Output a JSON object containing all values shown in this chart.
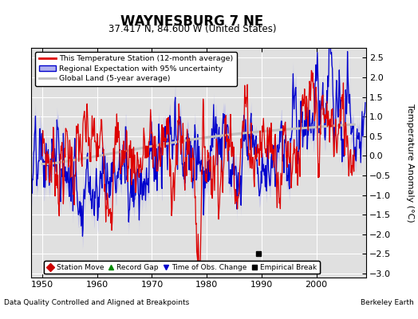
{
  "title": "WAYNESBURG 7 NE",
  "subtitle": "37.417 N, 84.600 W (United States)",
  "ylabel": "Temperature Anomaly (°C)",
  "xlabel_left": "Data Quality Controlled and Aligned at Breakpoints",
  "xlabel_right": "Berkeley Earth",
  "ylim": [
    -3.1,
    2.75
  ],
  "xlim": [
    1948.0,
    2009.0
  ],
  "yticks": [
    -3,
    -2.5,
    -2,
    -1.5,
    -1,
    -0.5,
    0,
    0.5,
    1,
    1.5,
    2,
    2.5
  ],
  "xticks": [
    1950,
    1960,
    1970,
    1980,
    1990,
    2000
  ],
  "bg_color": "#e0e0e0",
  "grid_color": "white",
  "station_line_color": "#dd0000",
  "regional_line_color": "#0000cc",
  "regional_fill_color": "#b0b0ee",
  "global_line_color": "#c0c0c0",
  "empirical_break_x": 1989.5,
  "empirical_break_y": -2.5
}
